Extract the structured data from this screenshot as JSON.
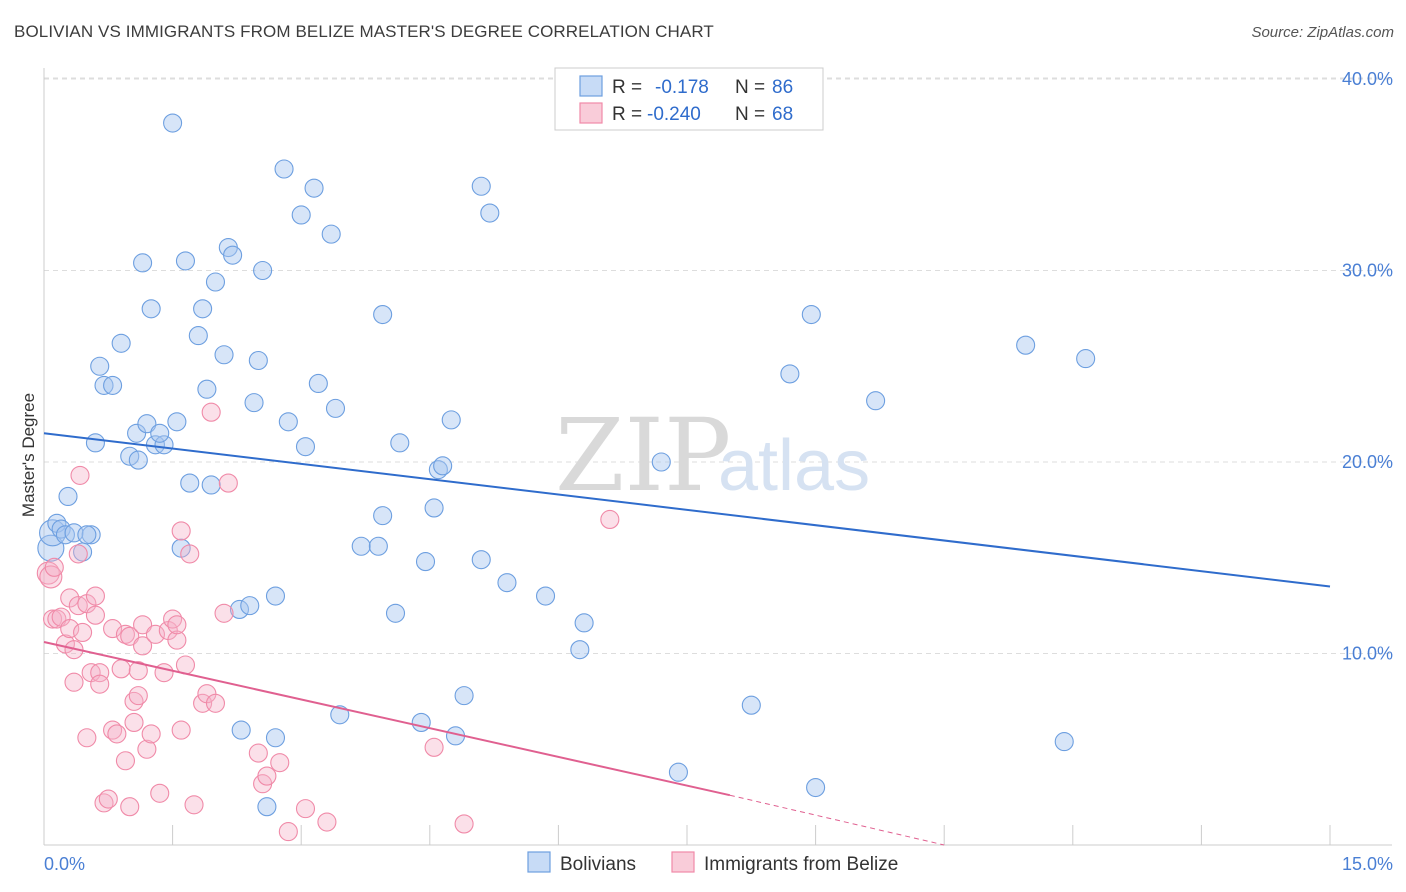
{
  "title": "BOLIVIAN VS IMMIGRANTS FROM BELIZE MASTER'S DEGREE CORRELATION CHART",
  "source": "Source: ZipAtlas.com",
  "watermark": {
    "part1": "ZIP",
    "part2": "atlas"
  },
  "legend": {
    "rows": [
      {
        "r_label": "R =",
        "r_value": "-0.178",
        "n_label": "N =",
        "n_value": "86"
      },
      {
        "r_label": "R =",
        "r_value": "-0.240",
        "n_label": "N =",
        "n_value": "68"
      }
    ]
  },
  "bottom_legend": [
    "Bolivians",
    "Immigrants from Belize"
  ],
  "chart_data": {
    "type": "scatter",
    "title": "BOLIVIAN VS IMMIGRANTS FROM BELIZE MASTER'S DEGREE CORRELATION CHART",
    "xlabel": "",
    "ylabel": "Master's Degree",
    "xlim": [
      0,
      15
    ],
    "ylim": [
      0,
      40
    ],
    "x_tick_labels": [
      "0.0%",
      "15.0%"
    ],
    "y_ticks": [
      10,
      20,
      30,
      40
    ],
    "y_tick_labels": [
      "10.0%",
      "20.0%",
      "30.0%",
      "40.0%"
    ],
    "grid": true,
    "colors": {
      "Bolivians": "#6d9fe0",
      "Bolivians_line": "#2f6ccc",
      "Immigrants from Belize": "#f08aa8",
      "Immigrants from Belize_line": "#e06090"
    },
    "series": [
      {
        "name": "Bolivians",
        "R": -0.178,
        "N": 86,
        "trend": {
          "x0": 0,
          "y0": 21.5,
          "x1": 15,
          "y1": 13.5
        },
        "points": [
          [
            0.08,
            15.5
          ],
          [
            0.1,
            16.3
          ],
          [
            0.15,
            16.8
          ],
          [
            0.2,
            16.5
          ],
          [
            0.25,
            16.2
          ],
          [
            0.35,
            16.3
          ],
          [
            0.55,
            16.2
          ],
          [
            0.28,
            18.2
          ],
          [
            0.45,
            15.3
          ],
          [
            0.6,
            21.0
          ],
          [
            0.65,
            25.0
          ],
          [
            0.7,
            24.0
          ],
          [
            0.8,
            24.0
          ],
          [
            0.9,
            26.2
          ],
          [
            1.0,
            20.3
          ],
          [
            1.08,
            21.5
          ],
          [
            1.1,
            20.1
          ],
          [
            1.15,
            30.4
          ],
          [
            1.2,
            22.0
          ],
          [
            1.25,
            28.0
          ],
          [
            1.3,
            20.9
          ],
          [
            1.4,
            20.9
          ],
          [
            1.5,
            37.7
          ],
          [
            1.55,
            22.1
          ],
          [
            1.6,
            15.5
          ],
          [
            1.65,
            30.5
          ],
          [
            1.7,
            18.9
          ],
          [
            1.8,
            26.6
          ],
          [
            1.85,
            28.0
          ],
          [
            1.9,
            23.8
          ],
          [
            1.95,
            18.8
          ],
          [
            2.0,
            29.4
          ],
          [
            2.1,
            25.6
          ],
          [
            2.15,
            31.2
          ],
          [
            2.2,
            30.8
          ],
          [
            2.28,
            12.3
          ],
          [
            2.3,
            6.0
          ],
          [
            2.4,
            12.5
          ],
          [
            2.45,
            23.1
          ],
          [
            2.5,
            25.3
          ],
          [
            2.55,
            30.0
          ],
          [
            2.6,
            2.0
          ],
          [
            2.7,
            5.6
          ],
          [
            2.7,
            13.0
          ],
          [
            2.8,
            35.3
          ],
          [
            2.85,
            22.1
          ],
          [
            3.0,
            32.9
          ],
          [
            3.05,
            20.8
          ],
          [
            3.15,
            34.3
          ],
          [
            3.2,
            24.1
          ],
          [
            3.35,
            31.9
          ],
          [
            3.4,
            22.8
          ],
          [
            3.45,
            6.8
          ],
          [
            3.7,
            15.6
          ],
          [
            3.9,
            15.6
          ],
          [
            3.95,
            17.2
          ],
          [
            3.95,
            27.7
          ],
          [
            4.1,
            12.1
          ],
          [
            4.15,
            21.0
          ],
          [
            4.4,
            6.4
          ],
          [
            4.45,
            14.8
          ],
          [
            4.55,
            17.6
          ],
          [
            4.6,
            19.6
          ],
          [
            4.65,
            19.8
          ],
          [
            4.75,
            22.2
          ],
          [
            4.8,
            5.7
          ],
          [
            4.9,
            7.8
          ],
          [
            5.1,
            14.9
          ],
          [
            5.1,
            34.4
          ],
          [
            5.2,
            33.0
          ],
          [
            5.4,
            13.7
          ],
          [
            5.85,
            13.0
          ],
          [
            6.25,
            10.2
          ],
          [
            6.3,
            11.6
          ],
          [
            7.2,
            20.0
          ],
          [
            7.4,
            3.8
          ],
          [
            8.25,
            7.3
          ],
          [
            8.7,
            24.6
          ],
          [
            8.95,
            27.7
          ],
          [
            9.0,
            3.0
          ],
          [
            9.7,
            23.2
          ],
          [
            11.45,
            26.1
          ],
          [
            11.9,
            5.4
          ],
          [
            12.15,
            25.4
          ],
          [
            0.5,
            16.2
          ],
          [
            1.35,
            21.5
          ]
        ]
      },
      {
        "name": "Immigrants from Belize",
        "R": -0.24,
        "N": 68,
        "trend": {
          "x0": 0,
          "y0": 10.6,
          "x1": 8.0,
          "y1": 2.6,
          "dashed_to_x": 10.5,
          "dashed_to_y": 0.0
        },
        "points": [
          [
            0.05,
            14.2
          ],
          [
            0.08,
            14.0
          ],
          [
            0.1,
            11.8
          ],
          [
            0.12,
            14.5
          ],
          [
            0.15,
            11.8
          ],
          [
            0.2,
            11.9
          ],
          [
            0.25,
            10.5
          ],
          [
            0.3,
            12.9
          ],
          [
            0.3,
            11.3
          ],
          [
            0.35,
            10.2
          ],
          [
            0.35,
            8.5
          ],
          [
            0.4,
            15.2
          ],
          [
            0.4,
            12.5
          ],
          [
            0.42,
            19.3
          ],
          [
            0.45,
            11.1
          ],
          [
            0.5,
            5.6
          ],
          [
            0.5,
            12.6
          ],
          [
            0.55,
            9.0
          ],
          [
            0.6,
            13.0
          ],
          [
            0.6,
            12.0
          ],
          [
            0.65,
            9.0
          ],
          [
            0.65,
            8.4
          ],
          [
            0.7,
            2.2
          ],
          [
            0.75,
            2.4
          ],
          [
            0.8,
            11.3
          ],
          [
            0.8,
            6.0
          ],
          [
            0.85,
            5.8
          ],
          [
            0.9,
            9.2
          ],
          [
            0.95,
            11.0
          ],
          [
            0.95,
            4.4
          ],
          [
            1.0,
            10.9
          ],
          [
            1.0,
            2.0
          ],
          [
            1.05,
            7.5
          ],
          [
            1.05,
            6.4
          ],
          [
            1.1,
            9.1
          ],
          [
            1.1,
            7.8
          ],
          [
            1.15,
            11.5
          ],
          [
            1.15,
            10.4
          ],
          [
            1.2,
            5.0
          ],
          [
            1.25,
            5.8
          ],
          [
            1.3,
            11.0
          ],
          [
            1.35,
            2.7
          ],
          [
            1.4,
            9.0
          ],
          [
            1.45,
            11.2
          ],
          [
            1.5,
            11.8
          ],
          [
            1.55,
            10.7
          ],
          [
            1.6,
            16.4
          ],
          [
            1.6,
            6.0
          ],
          [
            1.65,
            9.4
          ],
          [
            1.7,
            15.2
          ],
          [
            1.75,
            2.1
          ],
          [
            1.85,
            7.4
          ],
          [
            1.9,
            7.9
          ],
          [
            1.95,
            22.6
          ],
          [
            2.0,
            7.4
          ],
          [
            2.1,
            12.1
          ],
          [
            2.15,
            18.9
          ],
          [
            2.5,
            4.8
          ],
          [
            2.55,
            3.2
          ],
          [
            2.6,
            3.6
          ],
          [
            2.75,
            4.3
          ],
          [
            2.85,
            0.7
          ],
          [
            3.05,
            1.9
          ],
          [
            3.3,
            1.2
          ],
          [
            4.55,
            5.1
          ],
          [
            4.9,
            1.1
          ],
          [
            6.6,
            17.0
          ],
          [
            1.55,
            11.5
          ]
        ]
      }
    ]
  }
}
